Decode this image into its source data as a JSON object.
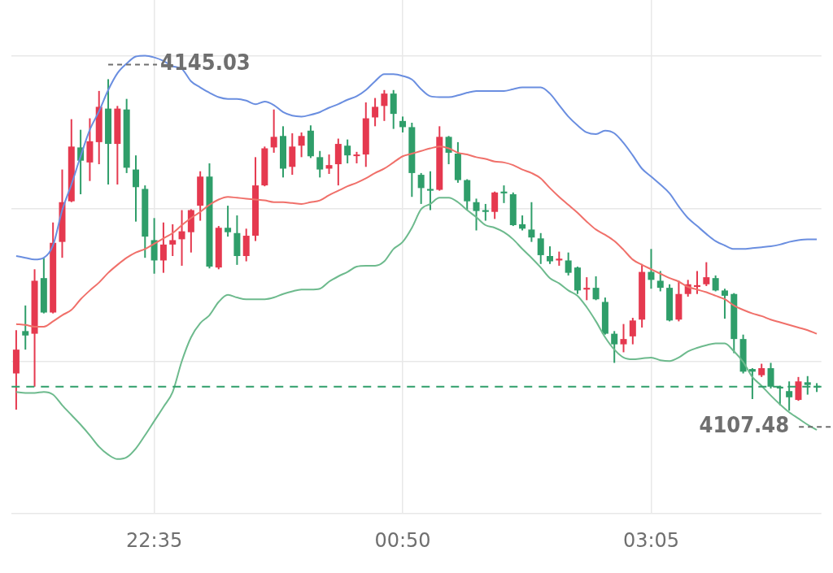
{
  "chart_data": {
    "type": "candlestick",
    "categories": [
      null,
      null,
      null,
      null,
      null,
      null,
      null,
      null,
      null,
      null,
      null,
      null,
      null,
      null,
      null,
      "22:35",
      null,
      null,
      null,
      null,
      null,
      null,
      null,
      null,
      null,
      null,
      null,
      null,
      null,
      null,
      null,
      null,
      null,
      null,
      null,
      null,
      null,
      null,
      null,
      null,
      null,
      null,
      "00:50",
      null,
      null,
      null,
      null,
      null,
      null,
      null,
      null,
      null,
      null,
      null,
      null,
      null,
      null,
      null,
      null,
      null,
      null,
      null,
      null,
      null,
      null,
      null,
      null,
      null,
      null,
      "03:05",
      null,
      null,
      null,
      null,
      null,
      null,
      null,
      null,
      null,
      null,
      null,
      null,
      null,
      null,
      null,
      null,
      null,
      null
    ],
    "ohlc": [
      [
        4111.7,
        4116.6,
        4107.6,
        4114.4
      ],
      [
        4116.5,
        4119.4,
        4114.4,
        4116.0
      ],
      [
        4116.2,
        4123.5,
        4110.2,
        4122.2
      ],
      [
        4122.5,
        4124.8,
        4118.5,
        4118.6
      ],
      [
        4118.6,
        4128.8,
        4118.5,
        4126.5
      ],
      [
        4126.6,
        4134.8,
        4124.8,
        4131.1
      ],
      [
        4131.2,
        4140.5,
        4131.1,
        4137.4
      ],
      [
        4137.3,
        4139.3,
        4132.0,
        4135.8
      ],
      [
        4135.6,
        4140.6,
        4133.5,
        4138.0
      ],
      [
        4137.9,
        4143.7,
        4135.4,
        4141.9
      ],
      [
        4141.7,
        4145.03,
        4133.1,
        4137.7
      ],
      [
        4137.7,
        4142.0,
        4133.1,
        4141.7
      ],
      [
        4141.6,
        4142.8,
        4134.4,
        4135.0
      ],
      [
        4134.8,
        4136.4,
        4128.9,
        4132.8
      ],
      [
        4132.6,
        4133.0,
        4124.8,
        4127.2
      ],
      [
        4126.8,
        4129.3,
        4123.0,
        4124.5
      ],
      [
        4124.5,
        4128.8,
        4123.1,
        4126.3
      ],
      [
        4126.3,
        4128.6,
        4125.0,
        4126.8
      ],
      [
        4126.9,
        4130.2,
        4123.9,
        4127.8
      ],
      [
        4127.7,
        4130.3,
        4125.4,
        4130.2
      ],
      [
        4130.7,
        4134.6,
        4129.0,
        4134.0
      ],
      [
        4134.0,
        4135.5,
        4123.6,
        4123.8
      ],
      [
        4123.7,
        4128.4,
        4123.5,
        4128.2
      ],
      [
        4128.2,
        4130.7,
        4127.2,
        4127.7
      ],
      [
        4127.6,
        4129.6,
        4124.0,
        4125.0
      ],
      [
        4125.0,
        4128.1,
        4124.4,
        4127.3
      ],
      [
        4127.3,
        4136.2,
        4126.7,
        4133.0
      ],
      [
        4133.0,
        4137.4,
        4132.9,
        4137.2
      ],
      [
        4137.3,
        4141.6,
        4136.7,
        4138.5
      ],
      [
        4138.6,
        4139.7,
        4133.9,
        4134.9
      ],
      [
        4135.1,
        4138.9,
        4134.2,
        4137.4
      ],
      [
        4137.5,
        4139.0,
        4136.2,
        4138.6
      ],
      [
        4139.2,
        4139.8,
        4136.1,
        4136.3
      ],
      [
        4136.2,
        4136.9,
        4133.9,
        4134.8
      ],
      [
        4134.9,
        4136.5,
        4134.3,
        4135.3
      ],
      [
        4135.4,
        4138.3,
        4133.0,
        4137.7
      ],
      [
        4137.5,
        4138.2,
        4135.5,
        4136.4
      ],
      [
        4136.4,
        4136.8,
        4135.5,
        4136.5
      ],
      [
        4136.5,
        4142.4,
        4135.1,
        4140.6
      ],
      [
        4140.7,
        4142.9,
        4139.7,
        4141.9
      ],
      [
        4142.0,
        4143.8,
        4140.3,
        4143.4
      ],
      [
        4143.4,
        4143.8,
        4139.4,
        4141.1
      ],
      [
        4140.3,
        4140.8,
        4139.0,
        4139.6
      ],
      [
        4139.6,
        4140.1,
        4131.7,
        4134.4
      ],
      [
        4134.2,
        4134.4,
        4130.9,
        4132.7
      ],
      [
        4132.6,
        4134.6,
        4130.2,
        4132.4
      ],
      [
        4132.5,
        4139.7,
        4132.4,
        4138.5
      ],
      [
        4138.5,
        4138.6,
        4135.4,
        4136.7
      ],
      [
        4136.6,
        4137.9,
        4133.3,
        4133.6
      ],
      [
        4133.6,
        4133.7,
        4130.2,
        4131.2
      ],
      [
        4131.1,
        4131.5,
        4127.9,
        4130.1
      ],
      [
        4130.2,
        4130.9,
        4129.0,
        4130.0
      ],
      [
        4130.0,
        4132.3,
        4129.2,
        4132.2
      ],
      [
        4132.3,
        4133.0,
        4131.0,
        4132.1
      ],
      [
        4132.0,
        4132.2,
        4128.4,
        4128.5
      ],
      [
        4128.6,
        4129.6,
        4127.9,
        4128.1
      ],
      [
        4128.0,
        4131.1,
        4126.6,
        4127.1
      ],
      [
        4127.0,
        4127.6,
        4124.1,
        4125.1
      ],
      [
        4125.0,
        4126.1,
        4124.1,
        4124.4
      ],
      [
        4124.5,
        4125.5,
        4123.9,
        4124.7
      ],
      [
        4124.5,
        4125.4,
        4122.8,
        4123.1
      ],
      [
        4123.7,
        4123.8,
        4120.7,
        4121.1
      ],
      [
        4121.2,
        4122.6,
        4120.0,
        4121.4
      ],
      [
        4121.4,
        4122.7,
        4120.0,
        4120.1
      ],
      [
        4119.8,
        4120.3,
        4116.1,
        4116.2
      ],
      [
        4116.2,
        4116.5,
        4112.9,
        4115.0
      ],
      [
        4115.0,
        4117.3,
        4114.1,
        4115.6
      ],
      [
        4115.9,
        4118.0,
        4115.0,
        4117.7
      ],
      [
        4117.8,
        4124.1,
        4116.9,
        4123.2
      ],
      [
        4123.2,
        4125.8,
        4121.3,
        4122.3
      ],
      [
        4122.2,
        4123.3,
        4121.0,
        4121.4
      ],
      [
        4121.4,
        4121.8,
        4117.6,
        4117.7
      ],
      [
        4117.8,
        4122.2,
        4117.6,
        4120.7
      ],
      [
        4120.7,
        4122.3,
        4120.4,
        4121.8
      ],
      [
        4121.5,
        4123.3,
        4120.7,
        4121.7
      ],
      [
        4121.8,
        4124.3,
        4121.6,
        4122.6
      ],
      [
        4122.5,
        4122.8,
        4121.0,
        4121.1
      ],
      [
        4121.1,
        4121.3,
        4117.9,
        4120.5
      ],
      [
        4120.7,
        4120.8,
        4114.0,
        4115.6
      ],
      [
        4115.6,
        4116.1,
        4111.7,
        4111.9
      ],
      [
        4112.2,
        4112.3,
        4108.8,
        4111.9
      ],
      [
        4111.5,
        4112.8,
        4111.3,
        4112.3
      ],
      [
        4112.3,
        4112.9,
        4110.0,
        4110.2
      ],
      [
        4110.2,
        4110.3,
        4108.1,
        4110.0
      ],
      [
        4109.7,
        4110.8,
        4107.48,
        4109.0
      ],
      [
        4108.7,
        4111.3,
        4108.6,
        4110.8
      ],
      [
        4110.7,
        4111.4,
        4109.3,
        4110.4
      ],
      [
        4110.3,
        4110.6,
        4109.6,
        4110.1
      ]
    ],
    "colors": [
      "#e5394f",
      "#2f9e6a",
      "#e5394f",
      "#2f9e6a",
      "#e5394f",
      "#e5394f",
      "#e5394f",
      "#2f9e6a",
      "#e5394f",
      "#e5394f",
      "#2f9e6a",
      "#e5394f",
      "#2f9e6a",
      "#2f9e6a",
      "#2f9e6a",
      "#2f9e6a",
      "#e5394f",
      "#e5394f",
      "#e5394f",
      "#e5394f",
      "#e5394f",
      "#2f9e6a",
      "#e5394f",
      "#2f9e6a",
      "#2f9e6a",
      "#e5394f",
      "#e5394f",
      "#e5394f",
      "#e5394f",
      "#2f9e6a",
      "#e5394f",
      "#e5394f",
      "#2f9e6a",
      "#2f9e6a",
      "#e5394f",
      "#e5394f",
      "#2f9e6a",
      "#e5394f",
      "#e5394f",
      "#e5394f",
      "#e5394f",
      "#2f9e6a",
      "#2f9e6a",
      "#2f9e6a",
      "#2f9e6a",
      "#2f9e6a",
      "#e5394f",
      "#2f9e6a",
      "#2f9e6a",
      "#2f9e6a",
      "#2f9e6a",
      "#2f9e6a",
      "#e5394f",
      "#2f9e6a",
      "#2f9e6a",
      "#2f9e6a",
      "#2f9e6a",
      "#2f9e6a",
      "#2f9e6a",
      "#e5394f",
      "#2f9e6a",
      "#2f9e6a",
      "#e5394f",
      "#2f9e6a",
      "#2f9e6a",
      "#2f9e6a",
      "#e5394f",
      "#e5394f",
      "#e5394f",
      "#2f9e6a",
      "#2f9e6a",
      "#2f9e6a",
      "#e5394f",
      "#e5394f",
      "#e5394f",
      "#e5394f",
      "#2f9e6a",
      "#2f9e6a",
      "#2f9e6a",
      "#2f9e6a",
      "#2f9e6a",
      "#e5394f",
      "#2f9e6a",
      "#2f9e6a",
      "#2f9e6a",
      "#e5394f",
      "#2f9e6a",
      "#2f9e6a"
    ],
    "series": [
      {
        "type": "line",
        "color": "#6a8ee0",
        "values": [
          4125.0,
          4124.8,
          4124.6,
          4124.8,
          4126.2,
          4130.2,
          4133.1,
          4136.3,
          4139.3,
          4141.4,
          4143.8,
          4145.7,
          4146.8,
          4147.6,
          4147.7,
          4147.5,
          4147.1,
          4146.5,
          4146.2,
          4144.8,
          4144.1,
          4143.5,
          4143.0,
          4142.8,
          4142.8,
          4142.6,
          4142.2,
          4142.5,
          4142.1,
          4141.3,
          4140.9,
          4140.8,
          4141.0,
          4141.3,
          4141.8,
          4142.2,
          4142.7,
          4143.1,
          4143.8,
          4144.8,
          4145.6,
          4145.6,
          4145.4,
          4145.0,
          4143.9,
          4143.1,
          4143.0,
          4143.0,
          4143.2,
          4143.5,
          4143.7,
          4143.7,
          4143.7,
          4143.7,
          4143.9,
          4144.1,
          4144.1,
          4144.1,
          4143.4,
          4142.1,
          4140.8,
          4139.8,
          4139.0,
          4138.8,
          4139.2,
          4138.9,
          4137.8,
          4136.4,
          4134.9,
          4134.0,
          4133.1,
          4132.1,
          4130.6,
          4129.3,
          4128.4,
          4127.5,
          4126.7,
          4126.2,
          4125.8,
          4125.8,
          4125.9,
          4126.0,
          4126.1,
          4126.3,
          4126.6,
          4126.8,
          4126.9,
          4126.9
        ]
      },
      {
        "type": "line",
        "color": "#f0706a",
        "values": [
          4117.3,
          4117.2,
          4117.0,
          4117.0,
          4117.6,
          4118.3,
          4118.9,
          4120.1,
          4121.1,
          4122.0,
          4123.1,
          4124.0,
          4124.8,
          4125.4,
          4125.8,
          4126.4,
          4127.0,
          4127.6,
          4128.5,
          4129.3,
          4130.0,
          4130.8,
          4131.4,
          4131.7,
          4131.6,
          4131.5,
          4131.4,
          4131.3,
          4131.1,
          4131.1,
          4131.0,
          4130.9,
          4131.1,
          4131.3,
          4131.9,
          4132.4,
          4132.9,
          4133.3,
          4133.8,
          4134.4,
          4134.9,
          4135.6,
          4136.3,
          4136.6,
          4136.9,
          4137.2,
          4137.4,
          4137.2,
          4136.7,
          4136.5,
          4136.2,
          4136.0,
          4135.7,
          4135.6,
          4135.3,
          4134.8,
          4134.4,
          4133.8,
          4132.7,
          4131.7,
          4130.8,
          4129.9,
          4128.9,
          4128.0,
          4127.4,
          4126.7,
          4125.7,
          4124.6,
          4124.0,
          4123.5,
          4123.0,
          4122.5,
          4122.1,
          4121.5,
          4121.2,
          4120.9,
          4120.5,
          4120.1,
          4119.4,
          4118.9,
          4118.5,
          4118.2,
          4117.8,
          4117.5,
          4117.2,
          4116.9,
          4116.6,
          4116.2
        ]
      },
      {
        "type": "line",
        "color": "#6dba8d",
        "values": [
          4109.6,
          4109.5,
          4109.5,
          4109.6,
          4109.3,
          4108.1,
          4107.0,
          4105.9,
          4104.7,
          4103.4,
          4102.5,
          4102.0,
          4102.2,
          4103.2,
          4104.7,
          4106.3,
          4107.9,
          4109.6,
          4113.1,
          4115.8,
          4117.4,
          4118.3,
          4119.8,
          4120.6,
          4120.3,
          4120.1,
          4120.1,
          4120.1,
          4120.3,
          4120.7,
          4121.0,
          4121.2,
          4121.2,
          4121.3,
          4122.1,
          4122.7,
          4123.2,
          4123.8,
          4123.9,
          4123.9,
          4124.4,
          4125.8,
          4126.6,
          4128.2,
          4130.3,
          4130.9,
          4131.6,
          4131.6,
          4131.1,
          4130.2,
          4129.4,
          4128.5,
          4128.2,
          4127.7,
          4126.9,
          4125.8,
          4124.8,
          4123.7,
          4122.5,
          4121.9,
          4121.1,
          4120.5,
          4119.2,
          4117.6,
          4115.8,
          4114.4,
          4113.5,
          4113.3,
          4113.4,
          4113.5,
          4113.2,
          4113.1,
          4113.5,
          4114.2,
          4114.6,
          4114.9,
          4115.1,
          4115.1,
          4114.2,
          4113.0,
          4111.3,
          4110.3,
          4109.2,
          4108.2,
          4107.3,
          4106.6,
          4105.9,
          4105.3
        ]
      }
    ],
    "ylim": [
      4095.8,
      4154.0
    ],
    "yticks": [
      {
        "value": 4095.8,
        "label": null
      },
      {
        "value": 4113.1,
        "label": null
      },
      {
        "value": 4130.4,
        "label": null
      },
      {
        "value": 4147.7,
        "label": null
      }
    ],
    "tick_labels": "x",
    "grid": true,
    "marker": "none",
    "ref_lines": [
      {
        "axis": "y",
        "value": 4110.2,
        "color": "#2f9e6a",
        "line_style": "dashed"
      }
    ],
    "annotations": [
      "4145.03",
      "4107.48"
    ]
  }
}
